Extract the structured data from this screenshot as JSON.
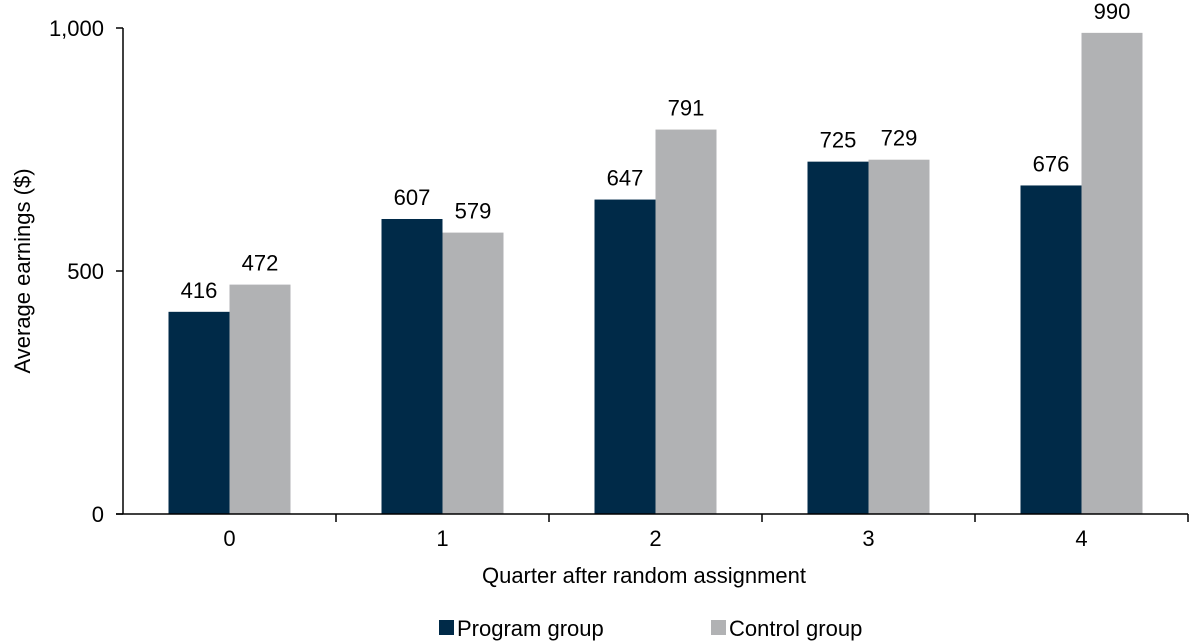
{
  "chart_data": {
    "type": "bar",
    "categories": [
      "0",
      "1",
      "2",
      "3",
      "4"
    ],
    "series": [
      {
        "name": "Program group",
        "values": [
          416,
          607,
          647,
          725,
          676
        ],
        "color": "#002a48"
      },
      {
        "name": "Control group",
        "values": [
          472,
          579,
          791,
          729,
          990
        ],
        "color": "#b1b2b4"
      }
    ],
    "data_labels": [
      [
        "416",
        "607",
        "647",
        "725",
        "676"
      ],
      [
        "472",
        "579",
        "791",
        "729",
        "990"
      ]
    ],
    "xlabel": "Quarter after random assignment",
    "ylabel": "Average earnings ($)",
    "ylim": [
      0,
      1000
    ],
    "yticks": [
      0,
      500,
      1000
    ],
    "ytick_labels": [
      "0",
      "500",
      "1,000"
    ],
    "grid": false,
    "legend_position": "bottom-center"
  }
}
